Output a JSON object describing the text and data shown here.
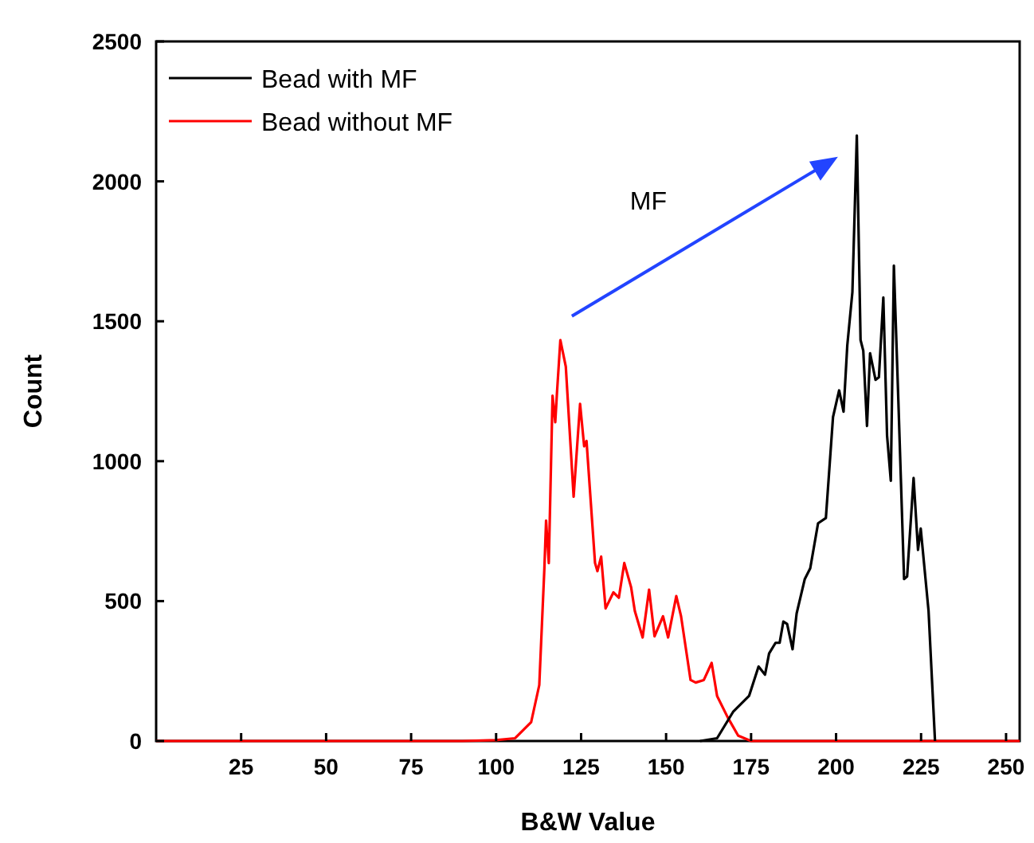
{
  "chart_data": {
    "type": "line",
    "xlabel": "B&W Value",
    "ylabel": "Count",
    "xlim": [
      0,
      254
    ],
    "ylim": [
      0,
      2500
    ],
    "xticks": [
      25,
      50,
      75,
      100,
      125,
      150,
      175,
      200,
      225,
      250
    ],
    "yticks": [
      0,
      500,
      1000,
      1500,
      2000,
      2500
    ],
    "grid": false,
    "legend": "top left",
    "marker": "none",
    "line_style": "solid",
    "annotations": [
      "MF"
    ],
    "series": [
      {
        "name": "Bead with MF",
        "color": "#000000",
        "x": [
          160,
          165,
          169.7,
          174.4,
          177.2,
          179.1,
          180.3,
          182.2,
          183.4,
          184.5,
          185.6,
          187.2,
          188.4,
          190.8,
          192.4,
          194.7,
          197,
          199.1,
          200.9,
          202.2,
          203.3,
          204.8,
          206.1,
          207.2,
          208,
          209.1,
          210,
          211.6,
          212.6,
          213.9,
          215,
          216.1,
          217,
          218.4,
          220,
          220.9,
          222.8,
          224.1,
          224.9,
          227.2,
          229.1
        ],
        "values": [
          0,
          10,
          104,
          161,
          266,
          237,
          313,
          351,
          351,
          427,
          418,
          328,
          456,
          579,
          617,
          778,
          797,
          1158,
          1253,
          1177,
          1414,
          1604,
          2164,
          1433,
          1395,
          1126,
          1386,
          1291,
          1300,
          1585,
          1091,
          930,
          1699,
          1186,
          579,
          588,
          940,
          683,
          759,
          465,
          0
        ]
      },
      {
        "name": "Bead without MF",
        "color": "#ff0000",
        "x": [
          0,
          90,
          100,
          105.6,
          110.3,
          112.7,
          114.2,
          114.7,
          115.5,
          116.6,
          117.4,
          117.9,
          118.9,
          120.5,
          122.8,
          124.7,
          125.9,
          126.6,
          129.1,
          129.8,
          130.9,
          132.2,
          134.5,
          136.1,
          137.7,
          139.7,
          140.8,
          143.1,
          145,
          146.6,
          149.1,
          150.6,
          153,
          154.4,
          157.2,
          158.7,
          161.1,
          163.4,
          165,
          168.1,
          171.2,
          175,
          254
        ],
        "values": [
          0,
          0,
          3,
          10,
          67,
          200,
          617,
          788,
          636,
          1234,
          1139,
          1243,
          1433,
          1338,
          873,
          1205,
          1053,
          1072,
          636,
          607,
          659,
          474,
          531,
          512,
          636,
          550,
          465,
          370,
          541,
          374,
          446,
          370,
          518,
          446,
          218,
          209,
          218,
          279,
          161,
          85,
          19,
          0,
          0
        ]
      }
    ]
  }
}
